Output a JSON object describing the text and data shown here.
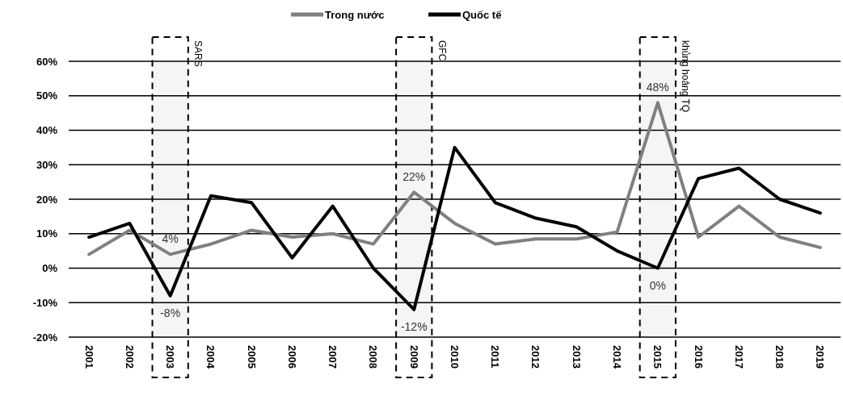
{
  "chart_data": {
    "type": "line",
    "categories": [
      "2001",
      "2002",
      "2003",
      "2004",
      "2005",
      "2006",
      "2007",
      "2008",
      "2009",
      "2010",
      "2011",
      "2012",
      "2013",
      "2014",
      "2015",
      "2016",
      "2017",
      "2018",
      "2019"
    ],
    "series": [
      {
        "name": "Trong nước",
        "color": "#808080",
        "values": [
          4,
          11,
          4,
          7,
          11,
          9,
          10,
          7,
          22,
          13,
          7,
          8.5,
          8.5,
          10.5,
          48,
          9,
          18,
          9,
          6
        ],
        "value_labels": [
          null,
          null,
          "4%",
          null,
          null,
          null,
          null,
          null,
          "22%",
          null,
          null,
          null,
          null,
          null,
          "48%",
          null,
          null,
          null,
          null
        ]
      },
      {
        "name": "Quốc tế",
        "color": "#000000",
        "values": [
          9,
          13,
          -8,
          21,
          19,
          3,
          18,
          0,
          -12,
          35,
          19,
          14.5,
          12,
          5,
          0,
          26,
          29,
          20,
          16
        ],
        "value_labels": [
          null,
          null,
          "-8%",
          null,
          null,
          null,
          null,
          null,
          "-12%",
          null,
          null,
          null,
          null,
          null,
          "0%",
          null,
          null,
          null,
          null
        ]
      }
    ],
    "ylim": [
      -20,
      60
    ],
    "yticks": [
      {
        "value": -20,
        "label": "-20%"
      },
      {
        "value": -10,
        "label": "-10%"
      },
      {
        "value": 0,
        "label": "0%"
      },
      {
        "value": 10,
        "label": "10%"
      },
      {
        "value": 20,
        "label": "20%"
      },
      {
        "value": 30,
        "label": "30%"
      },
      {
        "value": 40,
        "label": "40%"
      },
      {
        "value": 50,
        "label": "50%"
      },
      {
        "value": 60,
        "label": "60%"
      }
    ],
    "grid": "y",
    "legend": "top",
    "marker": "none",
    "line_style": "solid",
    "bands": [
      {
        "axis": "x",
        "from": "2003",
        "to": "2003",
        "label": "SARS",
        "color": "#000000"
      },
      {
        "axis": "x",
        "from": "2009",
        "to": "2009",
        "label": "GFC",
        "color": "#000000"
      },
      {
        "axis": "x",
        "from": "2015",
        "to": "2015",
        "label": "khủng hoảng TQ",
        "color": "#000000"
      }
    ]
  }
}
